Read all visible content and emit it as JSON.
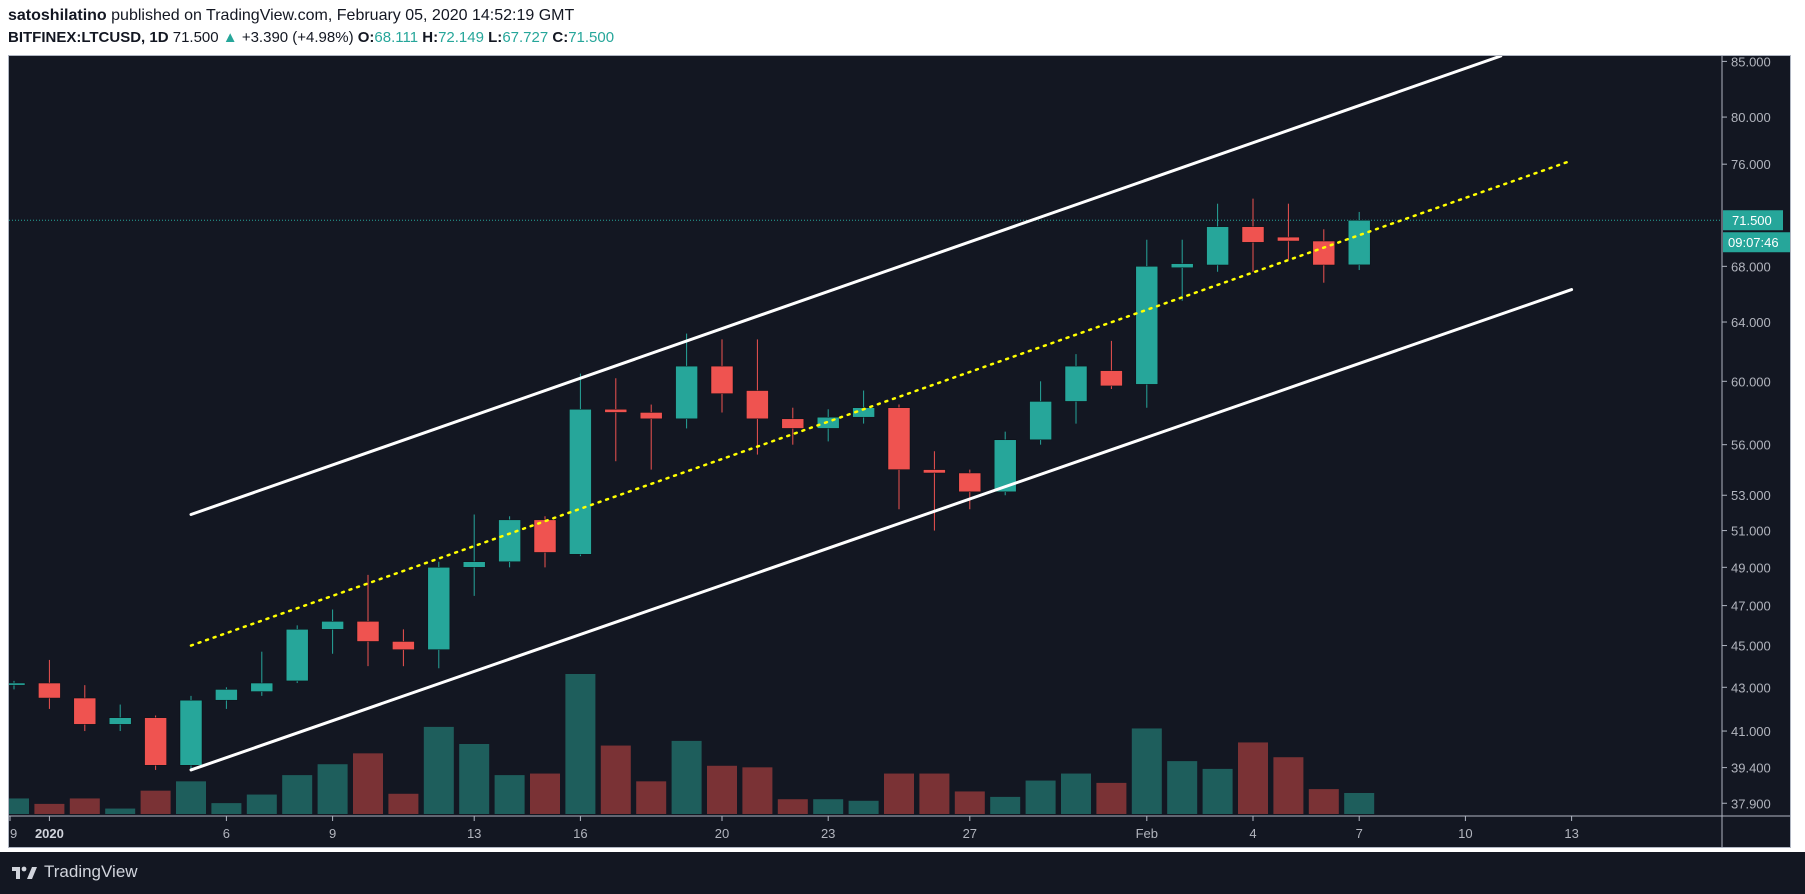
{
  "header": {
    "author": "satoshilatino",
    "published_text": "published on TradingView.com, February 05, 2020 14:52:19 GMT",
    "symbol": "BITFINEX:LTCUSD, 1D",
    "last": "71.500",
    "change": "+3.390 (+4.98%)",
    "o_label": "O:",
    "o_value": "68.111",
    "h_label": "H:",
    "h_value": "72.149",
    "l_label": "L:",
    "l_value": "67.727",
    "c_label": "C:",
    "c_value": "71.500"
  },
  "footer": {
    "brand": "TradingView"
  },
  "colors": {
    "up": "#26a69a",
    "down": "#ef5350",
    "volume_up": "#1e5e5c",
    "volume_down": "#7a3235",
    "channel": "#ffffff",
    "midline": "#ffff00",
    "background": "#131722"
  },
  "chart_data": {
    "type": "candlestick",
    "y_scale": "log",
    "ylim": [
      37.5,
      85.5
    ],
    "price_ticks": [
      "85.000",
      "80.000",
      "76.000",
      "68.000",
      "64.000",
      "60.000",
      "56.000",
      "53.000",
      "51.000",
      "49.000",
      "47.000",
      "45.000",
      "43.000",
      "41.000",
      "39.400",
      "37.900"
    ],
    "x_tick_labels": [
      "9",
      "2020",
      "6",
      "9",
      "13",
      "16",
      "20",
      "23",
      "27",
      "Feb",
      "4",
      "7",
      "10",
      "13"
    ],
    "last_price_label": "71.500",
    "countdown_label": "09:07:46",
    "candles": [
      {
        "date": "2019-12-31",
        "o": 43.1,
        "h": 43.3,
        "l": 42.9,
        "c": 43.2
      },
      {
        "date": "2020-01-01",
        "o": 43.2,
        "h": 44.3,
        "l": 42.0,
        "c": 42.5
      },
      {
        "date": "2020-01-02",
        "o": 42.5,
        "h": 43.1,
        "l": 41.0,
        "c": 41.3
      },
      {
        "date": "2020-01-03",
        "o": 41.3,
        "h": 42.2,
        "l": 41.0,
        "c": 41.6
      },
      {
        "date": "2020-01-04",
        "o": 41.6,
        "h": 41.7,
        "l": 39.3,
        "c": 39.5
      },
      {
        "date": "2020-01-05",
        "o": 39.5,
        "h": 42.6,
        "l": 39.3,
        "c": 42.4
      },
      {
        "date": "2020-01-06",
        "o": 42.4,
        "h": 43.0,
        "l": 42.0,
        "c": 42.9
      },
      {
        "date": "2020-01-07",
        "o": 42.8,
        "h": 44.7,
        "l": 42.6,
        "c": 43.2
      },
      {
        "date": "2020-01-08",
        "o": 43.3,
        "h": 46.0,
        "l": 43.2,
        "c": 45.8
      },
      {
        "date": "2020-01-09",
        "o": 45.8,
        "h": 46.8,
        "l": 44.6,
        "c": 46.2
      },
      {
        "date": "2020-01-10",
        "o": 46.2,
        "h": 48.6,
        "l": 44.0,
        "c": 45.2
      },
      {
        "date": "2020-01-11",
        "o": 45.2,
        "h": 45.8,
        "l": 44.0,
        "c": 44.8
      },
      {
        "date": "2020-01-12",
        "o": 44.8,
        "h": 49.3,
        "l": 43.9,
        "c": 49.0
      },
      {
        "date": "2020-01-13",
        "o": 49.0,
        "h": 51.9,
        "l": 47.5,
        "c": 49.3
      },
      {
        "date": "2020-01-14",
        "o": 49.3,
        "h": 51.8,
        "l": 49.0,
        "c": 51.6
      },
      {
        "date": "2020-01-15",
        "o": 51.6,
        "h": 51.8,
        "l": 49.0,
        "c": 49.8
      },
      {
        "date": "2020-01-16",
        "o": 49.7,
        "h": 60.5,
        "l": 49.6,
        "c": 58.2
      },
      {
        "date": "2020-01-17",
        "o": 58.2,
        "h": 60.2,
        "l": 55.0,
        "c": 58.0
      },
      {
        "date": "2020-01-18",
        "o": 58.0,
        "h": 58.5,
        "l": 54.5,
        "c": 57.6
      },
      {
        "date": "2020-01-19",
        "o": 57.6,
        "h": 63.2,
        "l": 57.0,
        "c": 61.0
      },
      {
        "date": "2020-01-20",
        "o": 61.0,
        "h": 62.8,
        "l": 58.0,
        "c": 59.2
      },
      {
        "date": "2020-01-21",
        "o": 59.4,
        "h": 62.8,
        "l": 55.4,
        "c": 57.6
      },
      {
        "date": "2020-01-22",
        "o": 57.6,
        "h": 58.3,
        "l": 56.0,
        "c": 57.0
      },
      {
        "date": "2020-01-23",
        "o": 57.0,
        "h": 58.2,
        "l": 56.2,
        "c": 57.7
      },
      {
        "date": "2020-01-24",
        "o": 57.7,
        "h": 59.4,
        "l": 57.3,
        "c": 58.3
      },
      {
        "date": "2020-01-25",
        "o": 58.3,
        "h": 58.5,
        "l": 52.2,
        "c": 54.5
      },
      {
        "date": "2020-01-26",
        "o": 54.5,
        "h": 55.6,
        "l": 51.0,
        "c": 54.3
      },
      {
        "date": "2020-01-27",
        "o": 54.3,
        "h": 54.5,
        "l": 52.2,
        "c": 53.2
      },
      {
        "date": "2020-01-28",
        "o": 53.2,
        "h": 56.8,
        "l": 53.0,
        "c": 56.3
      },
      {
        "date": "2020-01-29",
        "o": 56.3,
        "h": 60.0,
        "l": 56.0,
        "c": 58.7
      },
      {
        "date": "2020-01-30",
        "o": 58.7,
        "h": 61.8,
        "l": 57.3,
        "c": 61.0
      },
      {
        "date": "2020-01-31",
        "o": 60.7,
        "h": 62.7,
        "l": 59.5,
        "c": 59.7
      },
      {
        "date": "2020-02-01",
        "o": 59.8,
        "h": 70.0,
        "l": 58.3,
        "c": 68.0
      },
      {
        "date": "2020-02-02",
        "o": 67.9,
        "h": 70.0,
        "l": 65.5,
        "c": 68.2
      },
      {
        "date": "2020-02-03",
        "o": 68.1,
        "h": 72.8,
        "l": 67.6,
        "c": 71.0
      },
      {
        "date": "2020-02-04",
        "o": 71.0,
        "h": 73.2,
        "l": 67.6,
        "c": 69.8
      },
      {
        "date": "2020-02-05",
        "o": 70.2,
        "h": 72.8,
        "l": 68.5,
        "c": 69.9
      },
      {
        "date": "2020-02-06",
        "o": 69.9,
        "h": 70.8,
        "l": 66.8,
        "c": 68.1
      },
      {
        "date": "2020-02-07",
        "o": 68.111,
        "h": 72.149,
        "l": 67.727,
        "c": 71.5
      }
    ],
    "volume": [
      0.2,
      0.13,
      0.2,
      0.07,
      0.3,
      0.42,
      0.14,
      0.25,
      0.5,
      0.64,
      0.78,
      0.26,
      1.12,
      0.9,
      0.5,
      0.52,
      1.8,
      0.88,
      0.42,
      0.94,
      0.62,
      0.6,
      0.19,
      0.19,
      0.17,
      0.52,
      0.52,
      0.29,
      0.22,
      0.43,
      0.52,
      0.4,
      1.1,
      0.68,
      0.58,
      0.92,
      0.73,
      0.32,
      0.27
    ],
    "drawings": {
      "channel_upper": {
        "from": {
          "date": "2020-01-05",
          "price": 51.9
        },
        "to": {
          "date": "2020-02-11",
          "price": 85.5
        }
      },
      "channel_lower": {
        "from": {
          "date": "2020-01-05",
          "price": 39.3
        },
        "to": {
          "date": "2020-02-13",
          "price": 66.3
        }
      },
      "midline": {
        "from": {
          "date": "2020-01-05",
          "price": 45.0
        },
        "to": {
          "date": "2020-02-13",
          "price": 76.3
        }
      },
      "last_price_line": 71.5
    }
  }
}
